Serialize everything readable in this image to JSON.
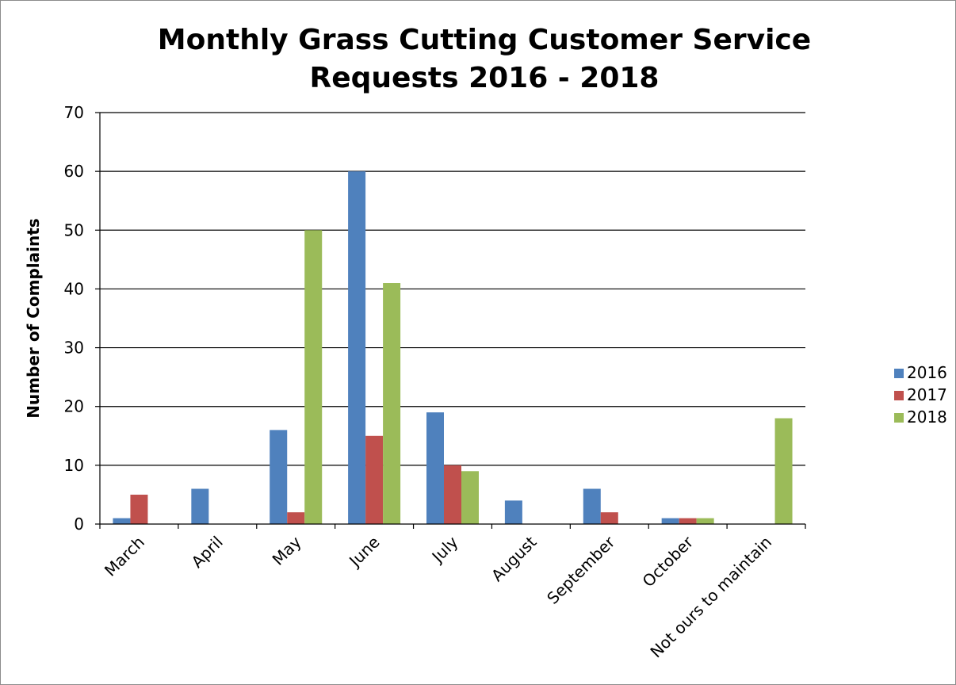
{
  "chart_data": {
    "type": "bar",
    "title_line1": "Monthly Grass Cutting Customer Service",
    "title_line2": "Requests 2016 - 2018",
    "xlabel": "",
    "ylabel": "Number of Complaints",
    "ylim": [
      0,
      70
    ],
    "yticks": [
      0,
      10,
      20,
      30,
      40,
      50,
      60,
      70
    ],
    "grid": true,
    "legend_position": "right",
    "categories": [
      "March",
      "April",
      "May",
      "June",
      "July",
      "August",
      "September",
      "October",
      "Not ours to maintain"
    ],
    "series": [
      {
        "name": "2016",
        "color": "#4f81bd",
        "values": [
          1,
          6,
          16,
          60,
          19,
          4,
          6,
          1,
          0
        ]
      },
      {
        "name": "2017",
        "color": "#c0504d",
        "values": [
          5,
          0,
          2,
          15,
          10,
          0,
          2,
          1,
          0
        ]
      },
      {
        "name": "2018",
        "color": "#9bbb59",
        "values": [
          0,
          0,
          50,
          41,
          9,
          0,
          0,
          1,
          18
        ]
      }
    ]
  }
}
